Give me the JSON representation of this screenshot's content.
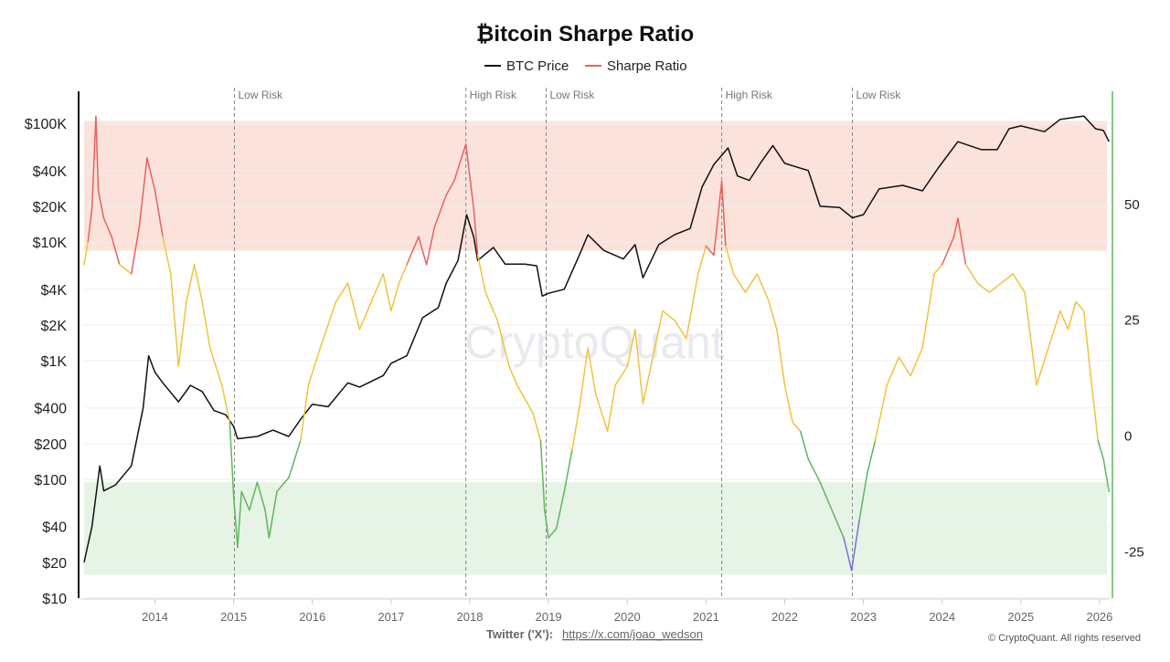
{
  "chart_data": {
    "type": "line",
    "title": "₿itcoin Sharpe Ratio",
    "legend": {
      "placement": "top-center",
      "entries": [
        {
          "name": "BTC Price",
          "color": "#111111"
        },
        {
          "name": "Sharpe Ratio",
          "color": "#e8625c"
        }
      ]
    },
    "x_ticks": [
      "2014",
      "2015",
      "2016",
      "2017",
      "2018",
      "2019",
      "2020",
      "2021",
      "2022",
      "2023",
      "2024",
      "2025",
      "2026"
    ],
    "xlim": [
      2013.1,
      2026.14
    ],
    "left_axis": {
      "scale": "log",
      "ylim": [
        10,
        186000
      ],
      "ticks": [
        {
          "v": 100000,
          "label": "$100K"
        },
        {
          "v": 40000,
          "label": "$40K"
        },
        {
          "v": 20000,
          "label": "$20K"
        },
        {
          "v": 10000,
          "label": "$10K"
        },
        {
          "v": 4000,
          "label": "$4K"
        },
        {
          "v": 2000,
          "label": "$2K"
        },
        {
          "v": 1000,
          "label": "$1K"
        },
        {
          "v": 400,
          "label": "$400"
        },
        {
          "v": 200,
          "label": "$200"
        },
        {
          "v": 100,
          "label": "$100"
        },
        {
          "v": 40,
          "label": "$40"
        },
        {
          "v": 20,
          "label": "$20"
        },
        {
          "v": 10,
          "label": "$10"
        }
      ]
    },
    "right_axis": {
      "scale": "linear",
      "ylim": [
        -35,
        74.4
      ],
      "ticks": [
        50,
        25,
        0,
        -25
      ],
      "color": "#5cb85c"
    },
    "zones": [
      {
        "name": "high-risk-zone",
        "from": 40,
        "to": 68,
        "color": "#fbe3dc"
      },
      {
        "name": "low-risk-zone",
        "from": -30,
        "to": -10,
        "color": "#e6f4e6"
      }
    ],
    "sharpe_colors": {
      "high": "#e8625c",
      "mid": "#f0c33c",
      "low": "#5cb85c",
      "extreme_low": "#7b6fd6"
    },
    "sharpe_thresholds": {
      "high": 40,
      "low": 2,
      "extreme_low": -21
    },
    "annotations": [
      {
        "x": 2015.01,
        "label": "Low Risk"
      },
      {
        "x": 2017.95,
        "label": "High Risk"
      },
      {
        "x": 2018.97,
        "label": "Low Risk"
      },
      {
        "x": 2021.2,
        "label": "High Risk"
      },
      {
        "x": 2022.86,
        "label": "Low Risk"
      }
    ],
    "series": [
      {
        "name": "BTC Price",
        "axis": "left",
        "points": [
          [
            2013.1,
            20
          ],
          [
            2013.2,
            40
          ],
          [
            2013.3,
            130
          ],
          [
            2013.35,
            80
          ],
          [
            2013.5,
            90
          ],
          [
            2013.7,
            130
          ],
          [
            2013.85,
            400
          ],
          [
            2013.92,
            1100
          ],
          [
            2014.0,
            800
          ],
          [
            2014.1,
            650
          ],
          [
            2014.3,
            450
          ],
          [
            2014.45,
            620
          ],
          [
            2014.6,
            550
          ],
          [
            2014.75,
            380
          ],
          [
            2014.9,
            350
          ],
          [
            2015.0,
            280
          ],
          [
            2015.05,
            220
          ],
          [
            2015.3,
            230
          ],
          [
            2015.5,
            260
          ],
          [
            2015.7,
            230
          ],
          [
            2015.85,
            320
          ],
          [
            2016.0,
            430
          ],
          [
            2016.2,
            410
          ],
          [
            2016.45,
            650
          ],
          [
            2016.6,
            600
          ],
          [
            2016.9,
            750
          ],
          [
            2017.0,
            950
          ],
          [
            2017.2,
            1100
          ],
          [
            2017.4,
            2300
          ],
          [
            2017.6,
            2800
          ],
          [
            2017.7,
            4500
          ],
          [
            2017.85,
            7000
          ],
          [
            2017.96,
            17000
          ],
          [
            2018.05,
            11000
          ],
          [
            2018.1,
            7000
          ],
          [
            2018.3,
            9000
          ],
          [
            2018.45,
            6500
          ],
          [
            2018.7,
            6500
          ],
          [
            2018.85,
            6300
          ],
          [
            2018.92,
            3500
          ],
          [
            2019.0,
            3700
          ],
          [
            2019.2,
            4000
          ],
          [
            2019.4,
            8000
          ],
          [
            2019.5,
            11500
          ],
          [
            2019.7,
            8500
          ],
          [
            2019.95,
            7200
          ],
          [
            2020.1,
            9500
          ],
          [
            2020.2,
            5000
          ],
          [
            2020.4,
            9500
          ],
          [
            2020.6,
            11500
          ],
          [
            2020.8,
            13000
          ],
          [
            2020.95,
            29000
          ],
          [
            2021.1,
            45000
          ],
          [
            2021.28,
            62000
          ],
          [
            2021.4,
            36000
          ],
          [
            2021.55,
            33000
          ],
          [
            2021.7,
            47000
          ],
          [
            2021.85,
            65000
          ],
          [
            2022.0,
            46000
          ],
          [
            2022.3,
            40000
          ],
          [
            2022.45,
            20000
          ],
          [
            2022.7,
            19500
          ],
          [
            2022.86,
            16000
          ],
          [
            2023.0,
            17000
          ],
          [
            2023.2,
            28000
          ],
          [
            2023.5,
            30000
          ],
          [
            2023.75,
            27000
          ],
          [
            2023.95,
            42000
          ],
          [
            2024.2,
            70000
          ],
          [
            2024.5,
            60000
          ],
          [
            2024.7,
            60000
          ],
          [
            2024.85,
            90000
          ],
          [
            2025.0,
            95000
          ],
          [
            2025.3,
            85000
          ],
          [
            2025.5,
            108000
          ],
          [
            2025.8,
            115000
          ],
          [
            2025.95,
            90000
          ],
          [
            2026.05,
            87000
          ],
          [
            2026.12,
            70000
          ]
        ]
      },
      {
        "name": "Sharpe Ratio",
        "axis": "right",
        "points": [
          [
            2013.1,
            37
          ],
          [
            2013.15,
            42
          ],
          [
            2013.2,
            49
          ],
          [
            2013.25,
            69
          ],
          [
            2013.28,
            53
          ],
          [
            2013.35,
            47
          ],
          [
            2013.45,
            43
          ],
          [
            2013.55,
            37
          ],
          [
            2013.7,
            35
          ],
          [
            2013.8,
            45
          ],
          [
            2013.9,
            60
          ],
          [
            2014.0,
            53
          ],
          [
            2014.1,
            43
          ],
          [
            2014.2,
            35
          ],
          [
            2014.3,
            15
          ],
          [
            2014.4,
            29
          ],
          [
            2014.5,
            37
          ],
          [
            2014.6,
            29
          ],
          [
            2014.7,
            19
          ],
          [
            2014.85,
            11
          ],
          [
            2014.95,
            3
          ],
          [
            2015.0,
            -13
          ],
          [
            2015.05,
            -24
          ],
          [
            2015.1,
            -12
          ],
          [
            2015.2,
            -16
          ],
          [
            2015.3,
            -10
          ],
          [
            2015.4,
            -16
          ],
          [
            2015.45,
            -22
          ],
          [
            2015.55,
            -12
          ],
          [
            2015.7,
            -9
          ],
          [
            2015.85,
            -1
          ],
          [
            2015.95,
            11
          ],
          [
            2016.1,
            19
          ],
          [
            2016.3,
            29
          ],
          [
            2016.45,
            33
          ],
          [
            2016.6,
            23
          ],
          [
            2016.75,
            29
          ],
          [
            2016.9,
            35
          ],
          [
            2017.0,
            27
          ],
          [
            2017.1,
            33
          ],
          [
            2017.2,
            37
          ],
          [
            2017.35,
            43
          ],
          [
            2017.45,
            37
          ],
          [
            2017.55,
            45
          ],
          [
            2017.7,
            52
          ],
          [
            2017.8,
            55
          ],
          [
            2017.95,
            63
          ],
          [
            2018.05,
            49
          ],
          [
            2018.1,
            39
          ],
          [
            2018.2,
            31
          ],
          [
            2018.35,
            25
          ],
          [
            2018.5,
            15
          ],
          [
            2018.6,
            11
          ],
          [
            2018.8,
            5
          ],
          [
            2018.9,
            -1
          ],
          [
            2018.95,
            -16
          ],
          [
            2019.0,
            -22
          ],
          [
            2019.1,
            -20
          ],
          [
            2019.2,
            -12
          ],
          [
            2019.3,
            -3
          ],
          [
            2019.4,
            7
          ],
          [
            2019.5,
            19
          ],
          [
            2019.6,
            9
          ],
          [
            2019.75,
            1
          ],
          [
            2019.85,
            11
          ],
          [
            2020.0,
            15
          ],
          [
            2020.1,
            23
          ],
          [
            2020.2,
            7
          ],
          [
            2020.35,
            19
          ],
          [
            2020.45,
            27
          ],
          [
            2020.6,
            25
          ],
          [
            2020.75,
            21
          ],
          [
            2020.9,
            35
          ],
          [
            2021.0,
            41
          ],
          [
            2021.1,
            39
          ],
          [
            2021.2,
            55
          ],
          [
            2021.25,
            41
          ],
          [
            2021.35,
            35
          ],
          [
            2021.5,
            31
          ],
          [
            2021.65,
            35
          ],
          [
            2021.8,
            29
          ],
          [
            2021.9,
            23
          ],
          [
            2022.0,
            11
          ],
          [
            2022.1,
            3
          ],
          [
            2022.2,
            1
          ],
          [
            2022.3,
            -5
          ],
          [
            2022.45,
            -10
          ],
          [
            2022.6,
            -16
          ],
          [
            2022.75,
            -22
          ],
          [
            2022.85,
            -29
          ],
          [
            2022.95,
            -18
          ],
          [
            2023.05,
            -8
          ],
          [
            2023.15,
            -1
          ],
          [
            2023.3,
            11
          ],
          [
            2023.45,
            17
          ],
          [
            2023.6,
            13
          ],
          [
            2023.75,
            19
          ],
          [
            2023.9,
            35
          ],
          [
            2024.0,
            37
          ],
          [
            2024.15,
            43
          ],
          [
            2024.2,
            47
          ],
          [
            2024.3,
            37
          ],
          [
            2024.45,
            33
          ],
          [
            2024.6,
            31
          ],
          [
            2024.75,
            33
          ],
          [
            2024.9,
            35
          ],
          [
            2025.05,
            31
          ],
          [
            2025.2,
            11
          ],
          [
            2025.35,
            19
          ],
          [
            2025.5,
            27
          ],
          [
            2025.6,
            23
          ],
          [
            2025.7,
            29
          ],
          [
            2025.8,
            27
          ],
          [
            2025.9,
            11
          ],
          [
            2025.98,
            -1
          ],
          [
            2026.05,
            -5
          ],
          [
            2026.12,
            -12
          ]
        ]
      }
    ],
    "watermark": "CryptoQuant"
  },
  "footer": {
    "twitter_label": "Twitter ('X'):",
    "twitter_link": "https://x.com/joao_wedson",
    "copyright": "© CryptoQuant. All rights reserved"
  }
}
